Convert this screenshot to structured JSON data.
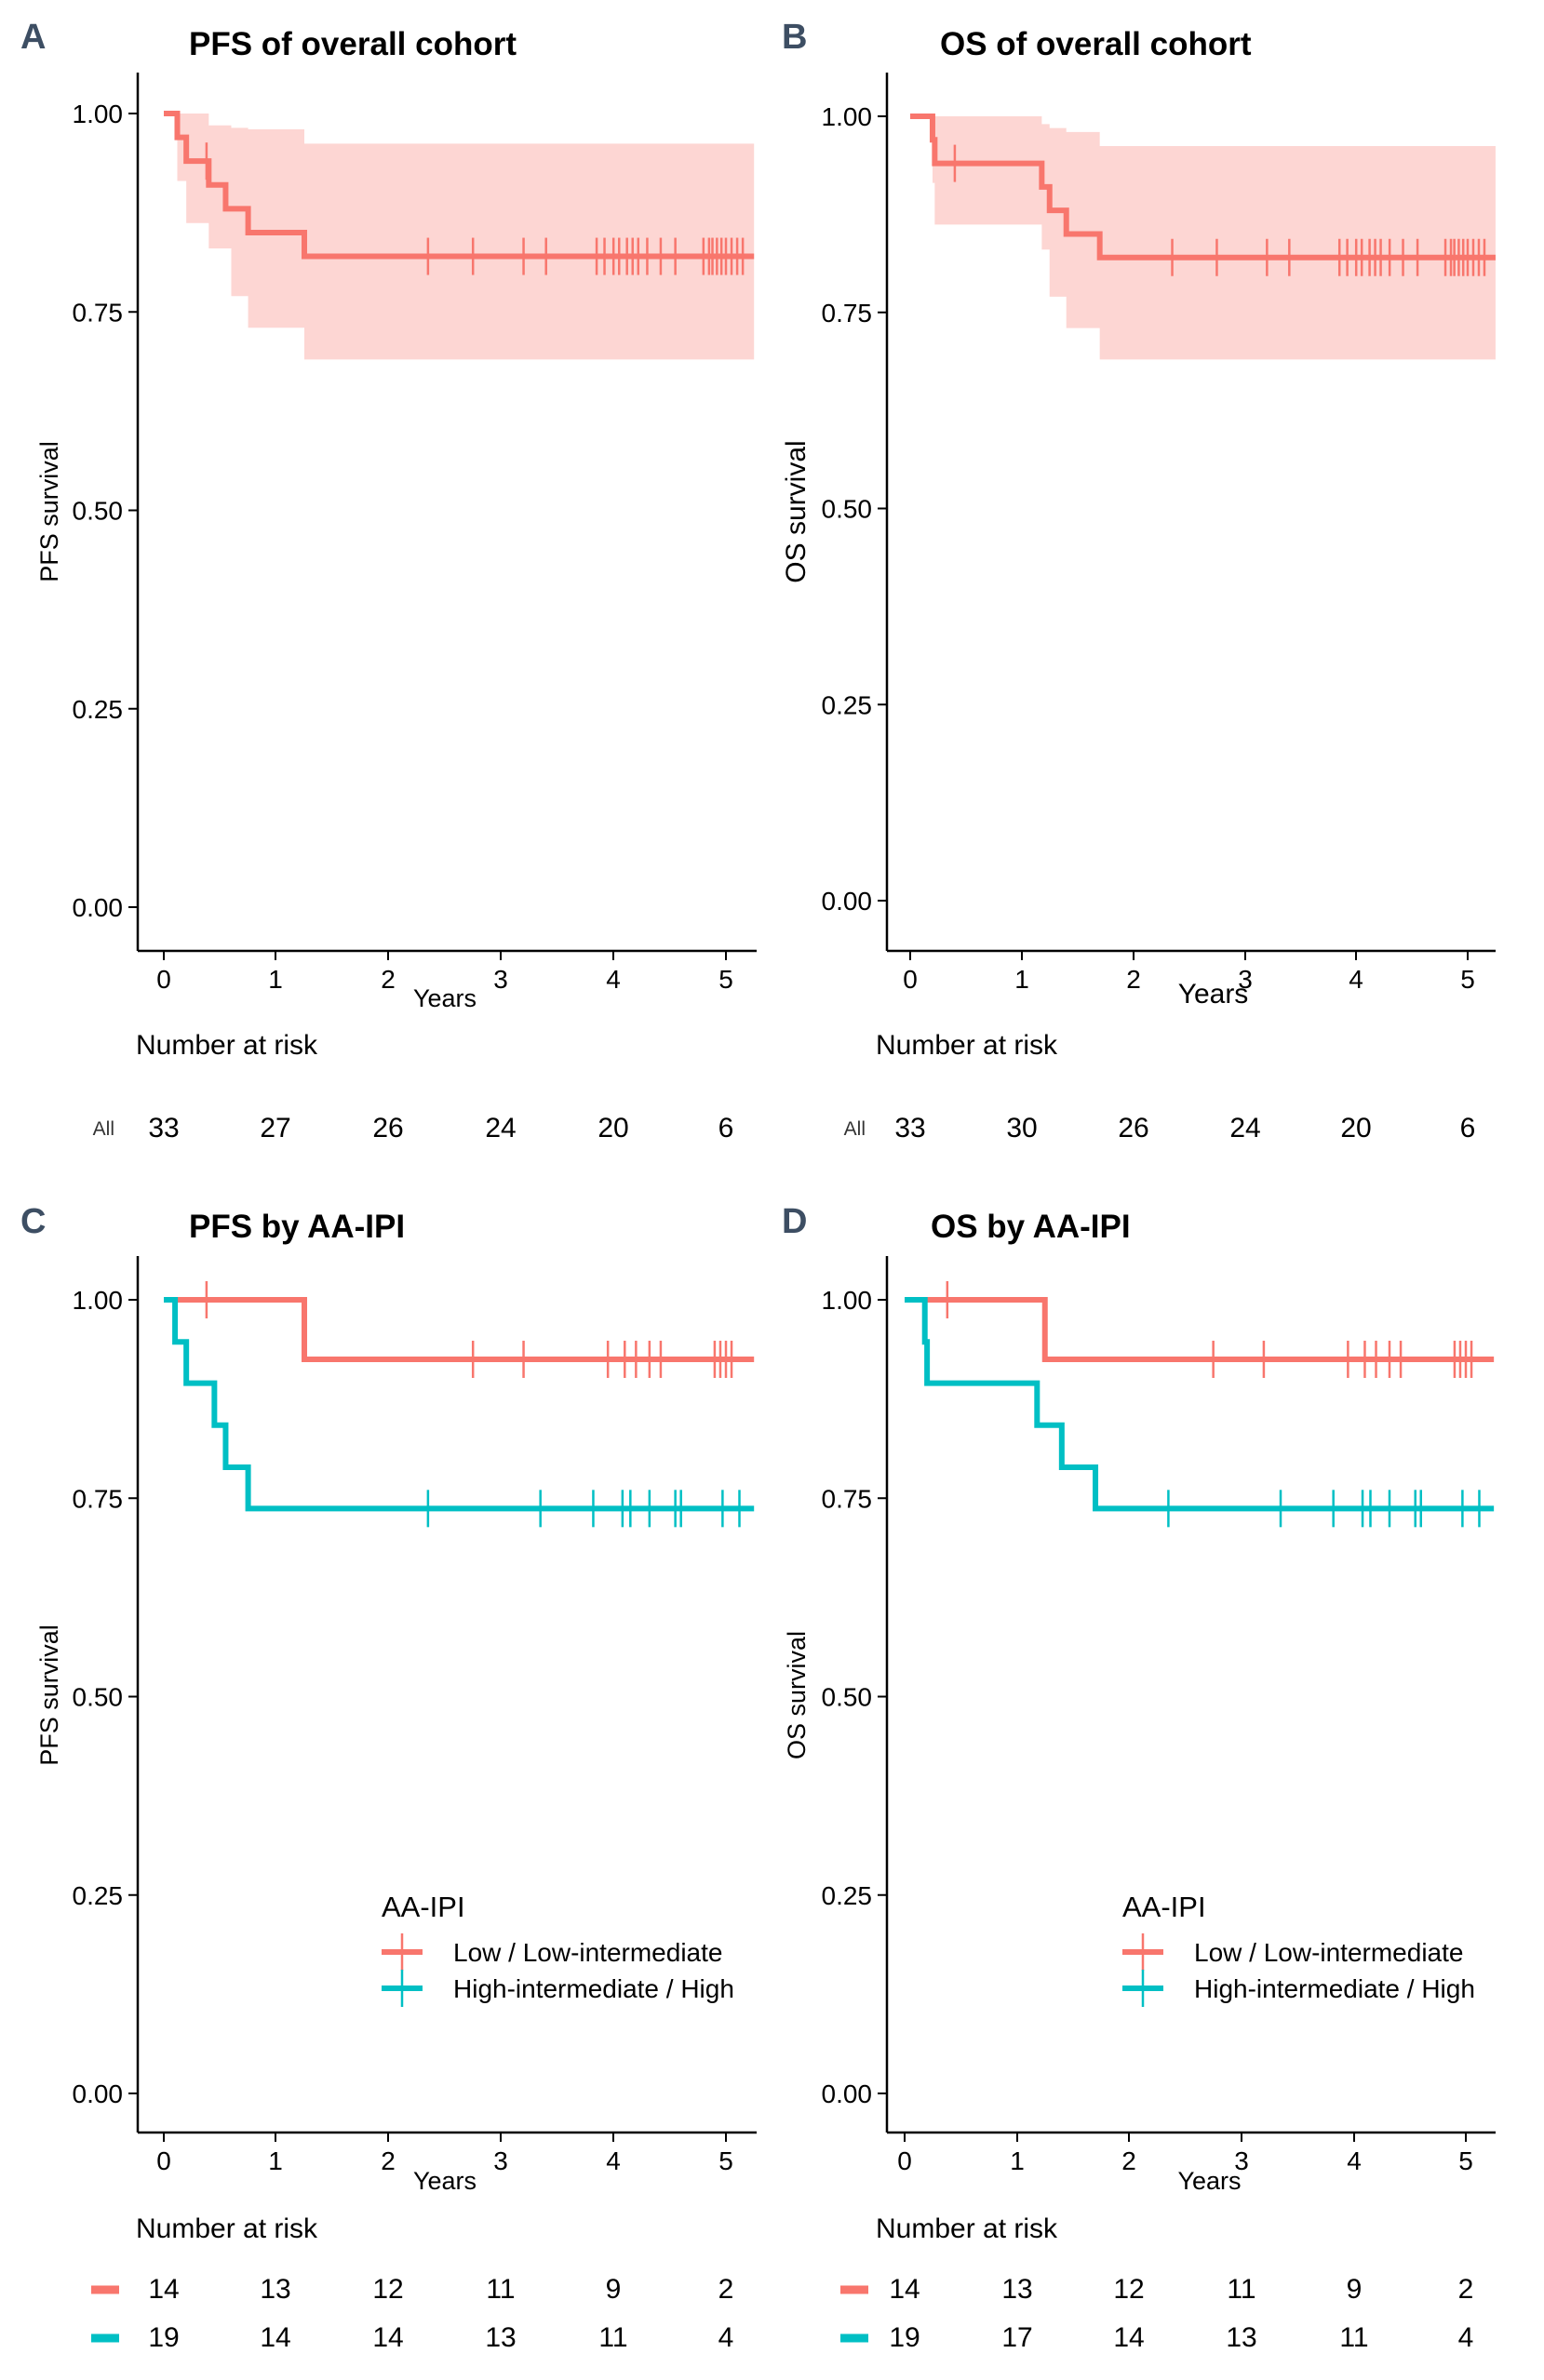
{
  "colors": {
    "low": "#f8766d",
    "high": "#00bfc4",
    "ci": "#fdd6d3",
    "panel_label": "#3d4e63"
  },
  "chart_data": [
    {
      "panel": "A",
      "type": "line",
      "title": "PFS of overall cohort",
      "xlabel": "Years",
      "ylabel": "PFS survival",
      "xlim": [
        0,
        5.25
      ],
      "ylim": [
        0,
        1
      ],
      "xticks": [
        "0",
        "1",
        "2",
        "3",
        "4",
        "5"
      ],
      "yticks": [
        "0.00",
        "0.25",
        "0.50",
        "0.75",
        "1.00"
      ],
      "series": [
        {
          "name": "All",
          "color": "low",
          "steps": [
            [
              0,
              1
            ],
            [
              0.12,
              0.97
            ],
            [
              0.2,
              0.94
            ],
            [
              0.4,
              0.91
            ],
            [
              0.55,
              0.88
            ],
            [
              0.75,
              0.85
            ],
            [
              1.25,
              0.82
            ]
          ],
          "ci": [
            [
              0,
              1,
              1
            ],
            [
              0.12,
              0.915,
              1
            ],
            [
              0.2,
              0.862,
              1
            ],
            [
              0.4,
              0.83,
              0.985
            ],
            [
              0.6,
              0.77,
              0.982
            ],
            [
              0.75,
              0.73,
              0.98
            ],
            [
              1.25,
              0.69,
              0.962
            ]
          ],
          "censor": [
            0.38,
            2.35,
            2.75,
            3.2,
            3.4,
            3.85,
            3.92,
            4.0,
            4.05,
            4.12,
            4.17,
            4.22,
            4.3,
            4.42,
            4.55,
            4.8,
            4.85,
            4.88,
            4.92,
            4.96,
            5.0,
            5.05,
            5.1,
            5.15
          ]
        }
      ],
      "risk_title": "Number at risk",
      "risk_rows": [
        {
          "label": "All",
          "counts": [
            "33",
            "27",
            "26",
            "24",
            "20",
            "6"
          ]
        }
      ]
    },
    {
      "panel": "B",
      "type": "line",
      "title": "OS of overall cohort",
      "xlabel": "Years",
      "ylabel": "OS survival",
      "xlim": [
        0,
        5.25
      ],
      "ylim": [
        0,
        1
      ],
      "xticks": [
        "0",
        "1",
        "2",
        "3",
        "4",
        "5"
      ],
      "yticks": [
        "0.00",
        "0.25",
        "0.50",
        "0.75",
        "1.00"
      ],
      "series": [
        {
          "name": "All",
          "color": "low",
          "steps": [
            [
              0,
              1
            ],
            [
              0.2,
              0.97
            ],
            [
              0.22,
              0.94
            ],
            [
              1.18,
              0.91
            ],
            [
              1.25,
              0.88
            ],
            [
              1.4,
              0.85
            ],
            [
              1.7,
              0.82
            ]
          ],
          "ci": [
            [
              0,
              1,
              1
            ],
            [
              0.2,
              0.915,
              1
            ],
            [
              0.22,
              0.862,
              1
            ],
            [
              1.18,
              0.83,
              0.99
            ],
            [
              1.25,
              0.77,
              0.985
            ],
            [
              1.4,
              0.73,
              0.98
            ],
            [
              1.7,
              0.69,
              0.962
            ]
          ],
          "censor": [
            0.4,
            2.35,
            2.75,
            3.2,
            3.4,
            3.85,
            3.92,
            4.0,
            4.05,
            4.12,
            4.17,
            4.22,
            4.3,
            4.42,
            4.55,
            4.8,
            4.85,
            4.88,
            4.92,
            4.96,
            5.0,
            5.05,
            5.1,
            5.15
          ]
        }
      ],
      "risk_title": "Number at risk",
      "risk_rows": [
        {
          "label": "All",
          "counts": [
            "33",
            "30",
            "26",
            "24",
            "20",
            "6"
          ]
        }
      ]
    },
    {
      "panel": "C",
      "type": "line",
      "title": "PFS by AA-IPI",
      "xlabel": "Years",
      "ylabel": "PFS survival",
      "xlim": [
        0,
        5.25
      ],
      "ylim": [
        0,
        1
      ],
      "xticks": [
        "0",
        "1",
        "2",
        "3",
        "4",
        "5"
      ],
      "yticks": [
        "0.00",
        "0.25",
        "0.50",
        "0.75",
        "1.00"
      ],
      "series": [
        {
          "name": "Low / Low-intermediate",
          "color": "low",
          "steps": [
            [
              0,
              1
            ],
            [
              1.25,
              0.925
            ]
          ],
          "censor": [
            0.38,
            2.75,
            3.2,
            3.95,
            4.1,
            4.2,
            4.32,
            4.42,
            4.9,
            4.95,
            5.0,
            5.05
          ]
        },
        {
          "name": "High-intermediate / High",
          "color": "high",
          "steps": [
            [
              0,
              1
            ],
            [
              0.1,
              0.947
            ],
            [
              0.2,
              0.895
            ],
            [
              0.45,
              0.842
            ],
            [
              0.55,
              0.789
            ],
            [
              0.75,
              0.737
            ]
          ],
          "censor": [
            2.35,
            3.35,
            3.82,
            4.08,
            4.15,
            4.32,
            4.55,
            4.6,
            4.97,
            5.12
          ]
        }
      ],
      "legend_title": "AA-IPI",
      "risk_title": "Number at risk",
      "risk_rows": [
        {
          "color": "low",
          "counts": [
            "14",
            "13",
            "12",
            "11",
            "9",
            "2"
          ]
        },
        {
          "color": "high",
          "counts": [
            "19",
            "14",
            "14",
            "13",
            "11",
            "4"
          ]
        }
      ]
    },
    {
      "panel": "D",
      "type": "line",
      "title": "OS by AA-IPI",
      "xlabel": "Years",
      "ylabel": "OS survival",
      "xlim": [
        0,
        5.25
      ],
      "ylim": [
        0,
        1
      ],
      "xticks": [
        "0",
        "1",
        "2",
        "3",
        "4",
        "5"
      ],
      "yticks": [
        "0.00",
        "0.25",
        "0.50",
        "0.75",
        "1.00"
      ],
      "series": [
        {
          "name": "Low / Low-intermediate",
          "color": "low",
          "steps": [
            [
              0,
              1
            ],
            [
              1.25,
              0.925
            ]
          ],
          "censor": [
            0.38,
            2.75,
            3.2,
            3.95,
            4.1,
            4.2,
            4.32,
            4.42,
            4.9,
            4.95,
            5.0,
            5.05
          ]
        },
        {
          "name": "High-intermediate / High",
          "color": "high",
          "steps": [
            [
              0,
              1
            ],
            [
              0.18,
              0.947
            ],
            [
              0.2,
              0.895
            ],
            [
              1.18,
              0.842
            ],
            [
              1.4,
              0.789
            ],
            [
              1.7,
              0.737
            ]
          ],
          "censor": [
            2.35,
            3.35,
            3.82,
            4.08,
            4.15,
            4.32,
            4.55,
            4.6,
            4.97,
            5.12
          ]
        }
      ],
      "legend_title": "AA-IPI",
      "risk_title": "Number at risk",
      "risk_rows": [
        {
          "color": "low",
          "counts": [
            "14",
            "13",
            "12",
            "11",
            "9",
            "2"
          ]
        },
        {
          "color": "high",
          "counts": [
            "19",
            "17",
            "14",
            "13",
            "11",
            "4"
          ]
        }
      ]
    }
  ]
}
